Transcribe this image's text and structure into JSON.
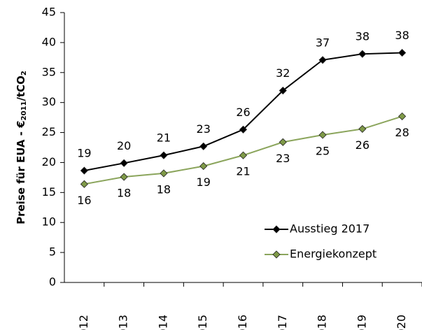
{
  "chart_data": {
    "type": "line",
    "ylabel": [
      "Preise für EUA - €",
      "2011",
      "/tCO",
      "2"
    ],
    "categories": [
      "2012",
      "2013",
      "2014",
      "2015",
      "2016",
      "2017",
      "2018",
      "2019",
      "2020"
    ],
    "series": [
      {
        "name": "Ausstieg 2017",
        "color": "#000000",
        "marker_color": "#000000",
        "values": [
          18.65,
          19.9,
          21.2,
          22.7,
          25.5,
          32.0,
          37.1,
          38.1,
          38.3
        ],
        "value_labels": [
          "19",
          "20",
          "21",
          "23",
          "26",
          "32",
          "37",
          "38",
          "38"
        ],
        "label_side": "above"
      },
      {
        "name": "Energiekonzept",
        "color": "#8ba55c",
        "marker_color": "#7f9a48",
        "values": [
          16.4,
          17.6,
          18.2,
          19.4,
          21.2,
          23.4,
          24.6,
          25.6,
          27.7
        ],
        "value_labels": [
          "16",
          "18",
          "18",
          "19",
          "21",
          "23",
          "25",
          "26",
          "28"
        ],
        "label_side": "below"
      }
    ],
    "ylim": [
      0,
      45
    ],
    "yticks": [
      0,
      5,
      10,
      15,
      20,
      25,
      30,
      35,
      40,
      45
    ],
    "grid": false,
    "legend_loc": "lower right"
  }
}
